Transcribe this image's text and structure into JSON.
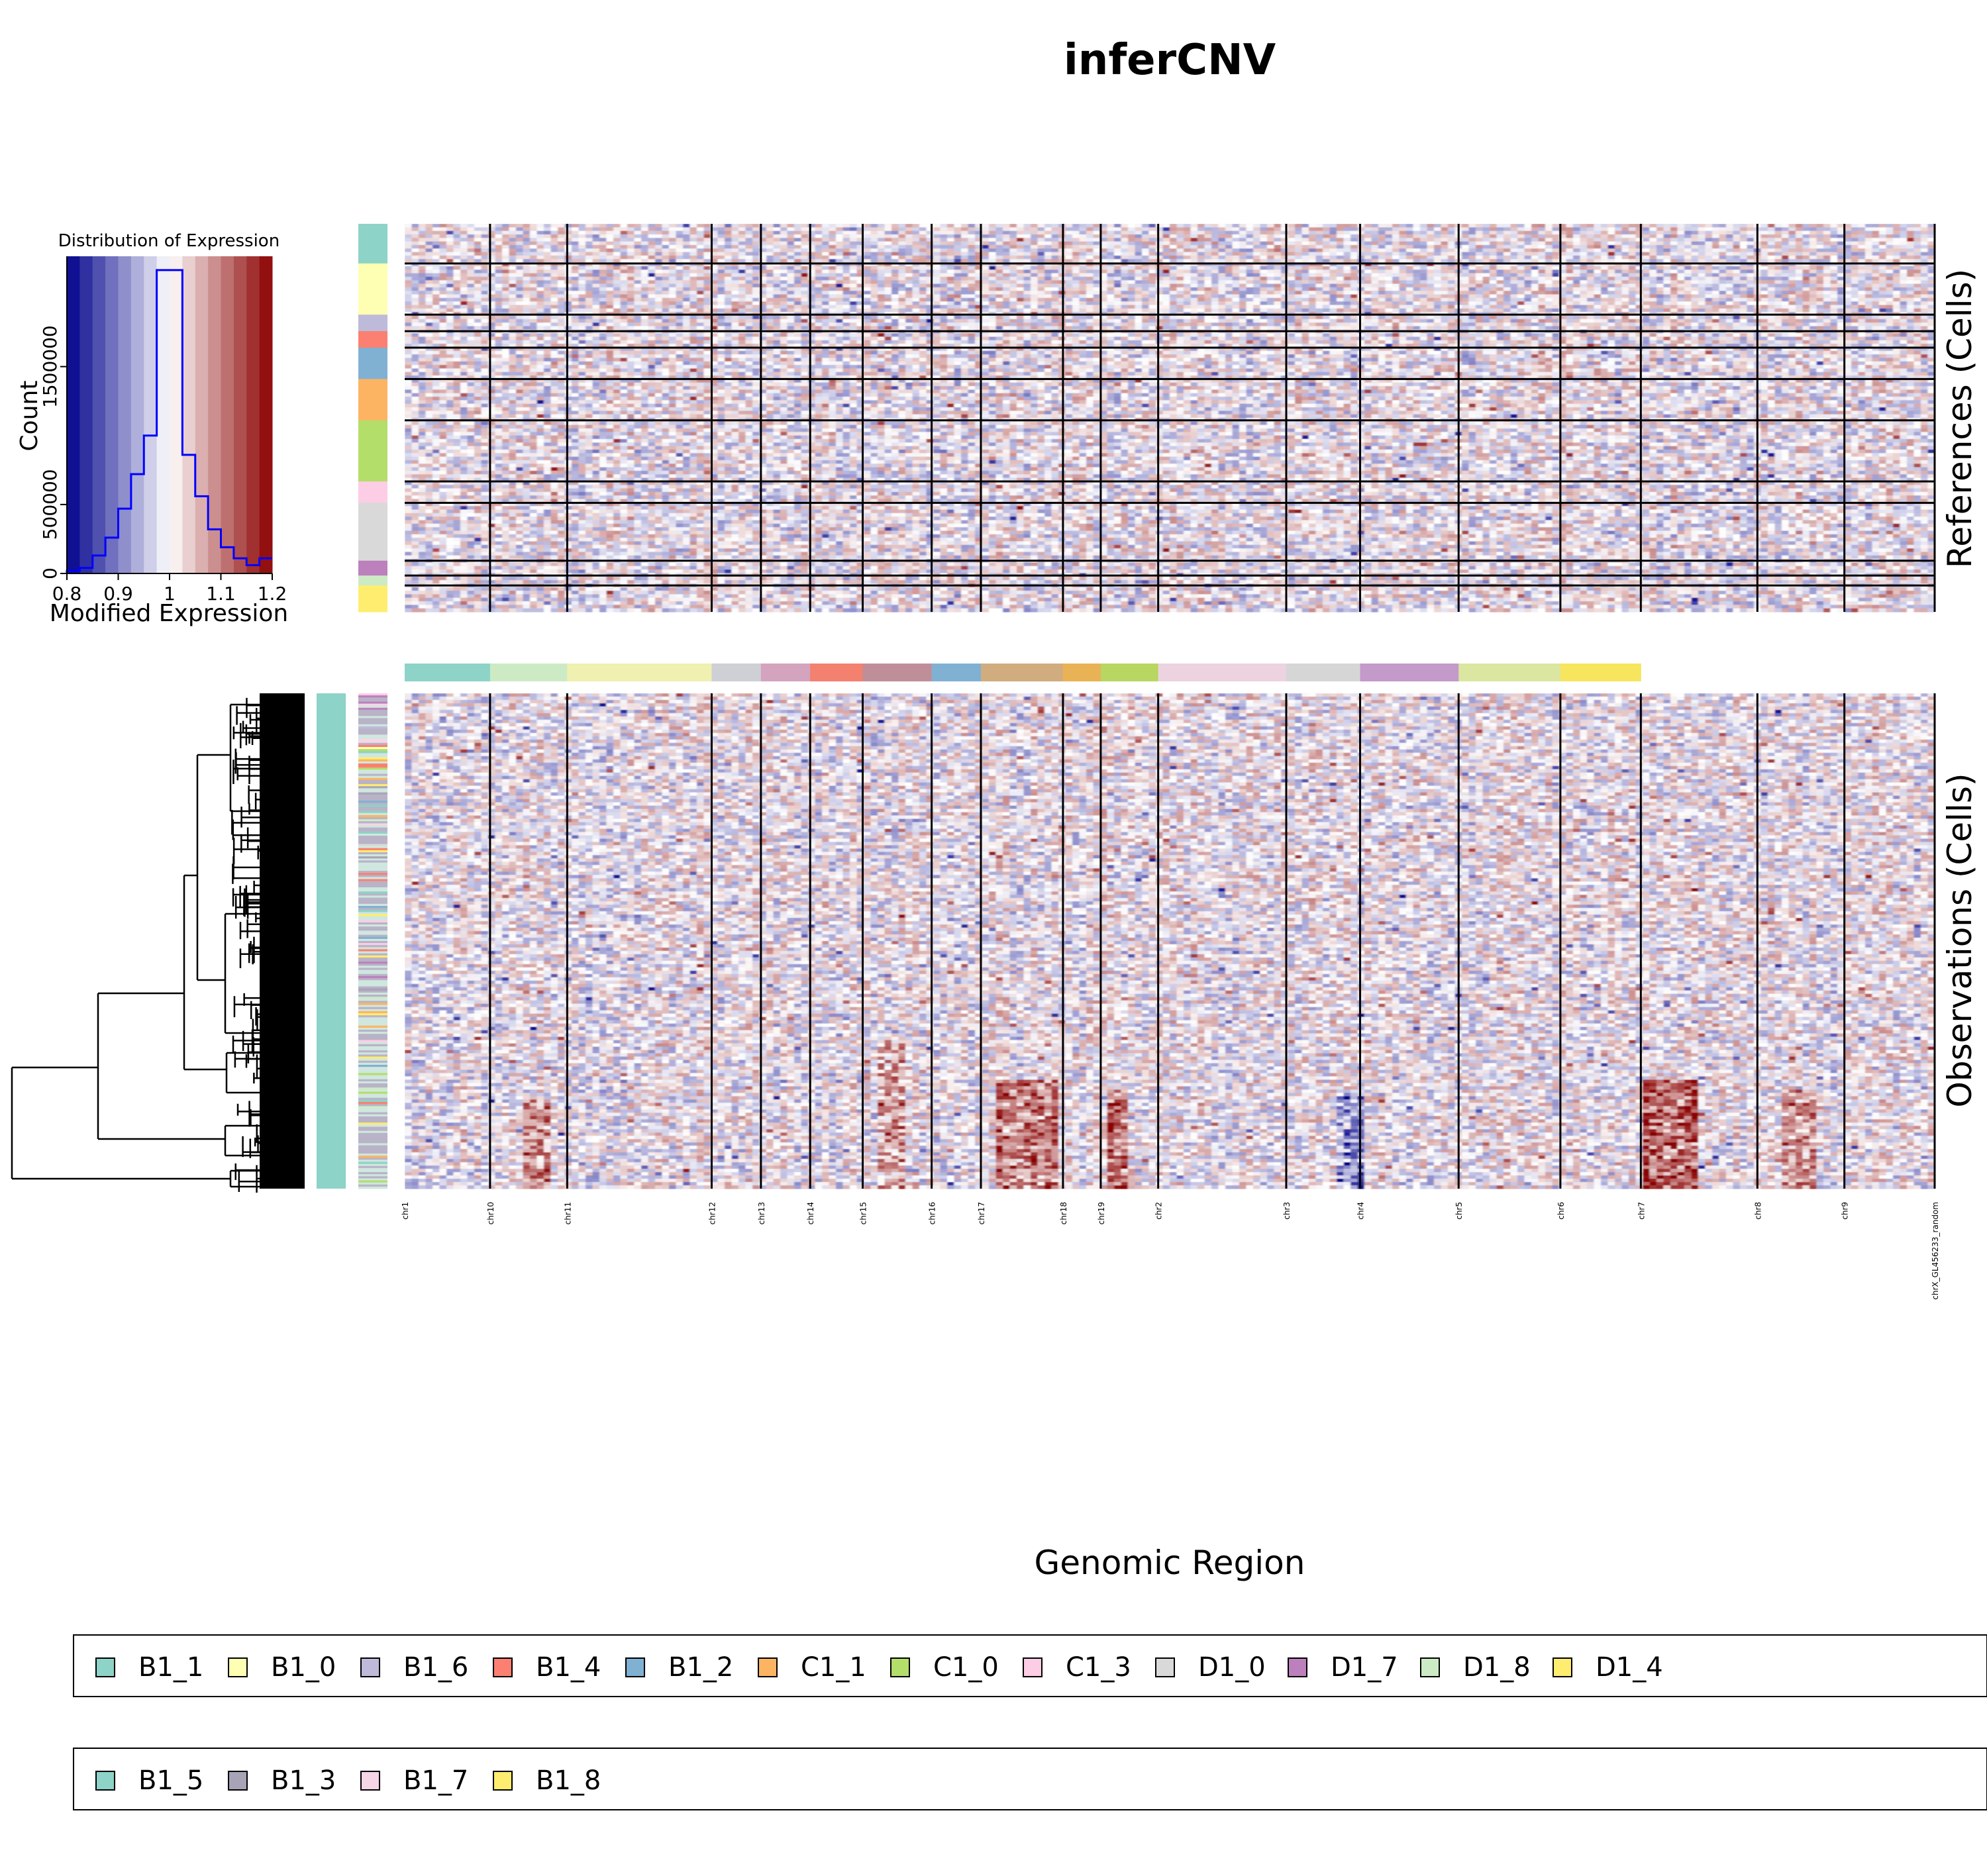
{
  "title": "inferCNV",
  "colors": {
    "background": "#ffffff",
    "cold": "#00008b",
    "neutral": "#ffffff",
    "hot": "#8b0000",
    "histogram_line": "#0000ff"
  },
  "chart_data": [
    {
      "type": "histogram",
      "title": "Distribution of Expression",
      "xlabel": "Modified Expression",
      "ylabel": "Count",
      "x_ticks": [
        "0.8",
        "0.9",
        "1",
        "1.1",
        "1.2"
      ],
      "y_ticks": [
        "0",
        "500000",
        "1500000"
      ],
      "xlim": [
        0.8,
        1.2
      ],
      "ylim": [
        0,
        2300000
      ],
      "bin_edges": [
        0.8,
        0.825,
        0.85,
        0.875,
        0.9,
        0.925,
        0.95,
        0.975,
        1.0,
        1.025,
        1.05,
        1.075,
        1.1,
        1.125,
        1.15,
        1.175,
        1.2
      ],
      "counts": [
        20000,
        40000,
        130000,
        260000,
        470000,
        720000,
        1000000,
        2200000,
        2200000,
        860000,
        560000,
        320000,
        190000,
        110000,
        60000,
        110000
      ]
    },
    {
      "type": "heatmap",
      "title": "inferCNV",
      "xlabel": "Genomic Region",
      "panels": [
        {
          "name": "references",
          "ylabel": "References (Cells)"
        },
        {
          "name": "observations",
          "ylabel": "Observations (Cells)"
        }
      ],
      "chromosomes": [
        {
          "name": "chr1",
          "genes": 52,
          "color": "#8dd3c7"
        },
        {
          "name": "chr10",
          "genes": 47,
          "color": "#ccebc5"
        },
        {
          "name": "chr11",
          "genes": 88,
          "color": "#f0f0b0"
        },
        {
          "name": "chr12",
          "genes": 30,
          "color": "#cfcfd6"
        },
        {
          "name": "chr13",
          "genes": 30,
          "color": "#d4a3bd"
        },
        {
          "name": "chr14",
          "genes": 32,
          "color": "#f4806f"
        },
        {
          "name": "chr15",
          "genes": 42,
          "color": "#c08e99"
        },
        {
          "name": "chr16",
          "genes": 30,
          "color": "#80b1d3"
        },
        {
          "name": "chr17",
          "genes": 50,
          "color": "#d1ac7e"
        },
        {
          "name": "chr18",
          "genes": 23,
          "color": "#e9b255"
        },
        {
          "name": "chr19",
          "genes": 35,
          "color": "#b8d662"
        },
        {
          "name": "chr2",
          "genes": 78,
          "color": "#ecd3df"
        },
        {
          "name": "chr3",
          "genes": 45,
          "color": "#d6d6d6"
        },
        {
          "name": "chr4",
          "genes": 60,
          "color": "#c39ac9"
        },
        {
          "name": "chr5",
          "genes": 62,
          "color": "#dbe6a0"
        },
        {
          "name": "chr6",
          "genes": 49,
          "color": "#f7e55e"
        },
        {
          "name": "chr7",
          "genes": 71,
          "color": null
        },
        {
          "name": "chr8",
          "genes": 53,
          "color": null
        },
        {
          "name": "chr9",
          "genes": 55,
          "color": null
        },
        {
          "name": "chrX_GL456233_random",
          "genes": 0,
          "color": null
        }
      ],
      "reference_groups": [
        {
          "label": "B1_1",
          "cells": 24,
          "color": "#8dd3c7"
        },
        {
          "label": "B1_0",
          "cells": 31,
          "color": "#ffffb3"
        },
        {
          "label": "B1_6",
          "cells": 10,
          "color": "#bebada"
        },
        {
          "label": "B1_4",
          "cells": 10,
          "color": "#fb8072"
        },
        {
          "label": "B1_2",
          "cells": 19,
          "color": "#80b1d3"
        },
        {
          "label": "C1_1",
          "cells": 25,
          "color": "#fdb462"
        },
        {
          "label": "C1_0",
          "cells": 37,
          "color": "#b3de69"
        },
        {
          "label": "C1_3",
          "cells": 13,
          "color": "#fccde5"
        },
        {
          "label": "D1_0",
          "cells": 35,
          "color": "#d9d9d9"
        },
        {
          "label": "D1_7",
          "cells": 9,
          "color": "#bc80bd"
        },
        {
          "label": "D1_8",
          "cells": 6,
          "color": "#ccebc5"
        },
        {
          "label": "D1_4",
          "cells": 16,
          "color": "#ffed6f"
        }
      ],
      "observation_groups": [
        {
          "label": "B1_5",
          "color": "#8dd3c7"
        },
        {
          "label": "B1_3",
          "color": "#a9a3b8"
        },
        {
          "label": "B1_7",
          "color": "#f6d5e6"
        },
        {
          "label": "B1_8",
          "color": "#ffed6f"
        }
      ],
      "legends": [
        {
          "name": "references",
          "groups": [
            "B1_1",
            "B1_0",
            "B1_6",
            "B1_4",
            "B1_2",
            "C1_1",
            "C1_0",
            "C1_3",
            "D1_0",
            "D1_7",
            "D1_8",
            "D1_4"
          ]
        },
        {
          "name": "observations",
          "groups": [
            "B1_5",
            "B1_3",
            "B1_7",
            "B1_8"
          ]
        }
      ]
    }
  ]
}
